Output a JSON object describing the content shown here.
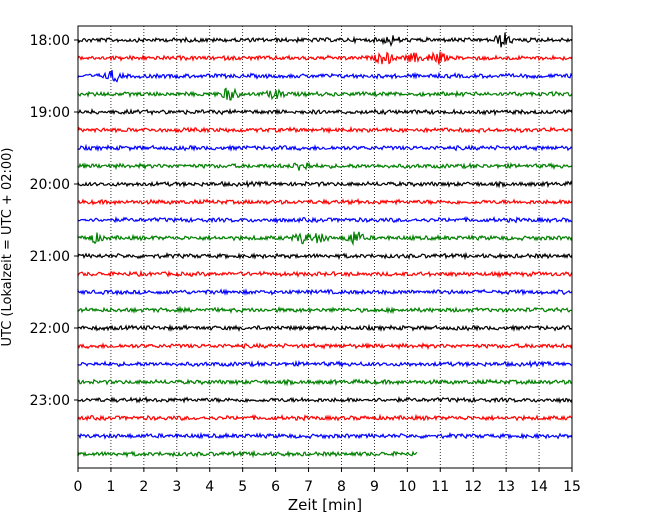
{
  "chart_data": {
    "type": "line",
    "title": "",
    "xlabel": "Zeit  [min]",
    "ylabel": "UTC (Lokalzeit = UTC + 02:00)",
    "xlim": [
      0,
      15
    ],
    "x_ticks": [
      "0",
      "1",
      "2",
      "3",
      "4",
      "5",
      "6",
      "7",
      "8",
      "9",
      "10",
      "11",
      "12",
      "13",
      "14",
      "15"
    ],
    "y_ticks": [
      "18:00",
      "19:00",
      "20:00",
      "21:00",
      "22:00",
      "23:00"
    ],
    "grid": "vertical dotted at each minute",
    "trace_colors": [
      "#000000",
      "#ff0000",
      "#0000ff",
      "#008000"
    ],
    "traces": [
      {
        "start": "18:00",
        "end_min": 15
      },
      {
        "start": "18:15",
        "end_min": 15
      },
      {
        "start": "18:30",
        "end_min": 15
      },
      {
        "start": "18:45",
        "end_min": 15
      },
      {
        "start": "19:00",
        "end_min": 15
      },
      {
        "start": "19:15",
        "end_min": 15
      },
      {
        "start": "19:30",
        "end_min": 15
      },
      {
        "start": "19:45",
        "end_min": 15
      },
      {
        "start": "20:00",
        "end_min": 15
      },
      {
        "start": "20:15",
        "end_min": 15
      },
      {
        "start": "20:30",
        "end_min": 15
      },
      {
        "start": "20:45",
        "end_min": 15
      },
      {
        "start": "21:00",
        "end_min": 15
      },
      {
        "start": "21:15",
        "end_min": 15
      },
      {
        "start": "21:30",
        "end_min": 15
      },
      {
        "start": "21:45",
        "end_min": 15
      },
      {
        "start": "22:00",
        "end_min": 15
      },
      {
        "start": "22:15",
        "end_min": 15
      },
      {
        "start": "22:30",
        "end_min": 15
      },
      {
        "start": "22:45",
        "end_min": 15
      },
      {
        "start": "23:00",
        "end_min": 15
      },
      {
        "start": "23:15",
        "end_min": 15
      },
      {
        "start": "23:30",
        "end_min": 15
      },
      {
        "start": "23:45",
        "end_min": 10.3
      }
    ]
  }
}
